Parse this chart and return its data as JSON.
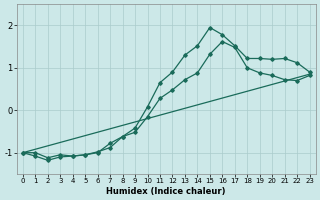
{
  "xlabel": "Humidex (Indice chaleur)",
  "xlim": [
    -0.5,
    23.5
  ],
  "ylim": [
    -1.5,
    2.5
  ],
  "yticks": [
    -1,
    0,
    1,
    2
  ],
  "xticks": [
    0,
    1,
    2,
    3,
    4,
    5,
    6,
    7,
    8,
    9,
    10,
    11,
    12,
    13,
    14,
    15,
    16,
    17,
    18,
    19,
    20,
    21,
    22,
    23
  ],
  "bg_color": "#cce8e8",
  "grid_color": "#aacccc",
  "line_color": "#1a6b5a",
  "line1_x": [
    0,
    1,
    2,
    3,
    4,
    5,
    6,
    7,
    8,
    9,
    10,
    11,
    12,
    13,
    14,
    15,
    16,
    17,
    18,
    19,
    20,
    21,
    22,
    23
  ],
  "line1_y": [
    -1.0,
    -1.08,
    -1.18,
    -1.1,
    -1.08,
    -1.05,
    -1.0,
    -0.78,
    -0.62,
    -0.42,
    0.08,
    0.65,
    0.9,
    1.3,
    1.52,
    1.95,
    1.78,
    1.52,
    1.22,
    1.22,
    1.2,
    1.22,
    1.12,
    0.9
  ],
  "line2_x": [
    0,
    1,
    2,
    3,
    4,
    5,
    6,
    7,
    8,
    9,
    10,
    11,
    12,
    13,
    14,
    15,
    16,
    17,
    18,
    19,
    20,
    21,
    22,
    23
  ],
  "line2_y": [
    -1.0,
    -1.0,
    -1.12,
    -1.05,
    -1.08,
    -1.05,
    -0.98,
    -0.88,
    -0.62,
    -0.52,
    -0.15,
    0.28,
    0.48,
    0.72,
    0.88,
    1.32,
    1.62,
    1.48,
    1.0,
    0.88,
    0.82,
    0.72,
    0.7,
    0.82
  ],
  "line3_x": [
    0,
    23
  ],
  "line3_y": [
    -1.0,
    0.85
  ]
}
